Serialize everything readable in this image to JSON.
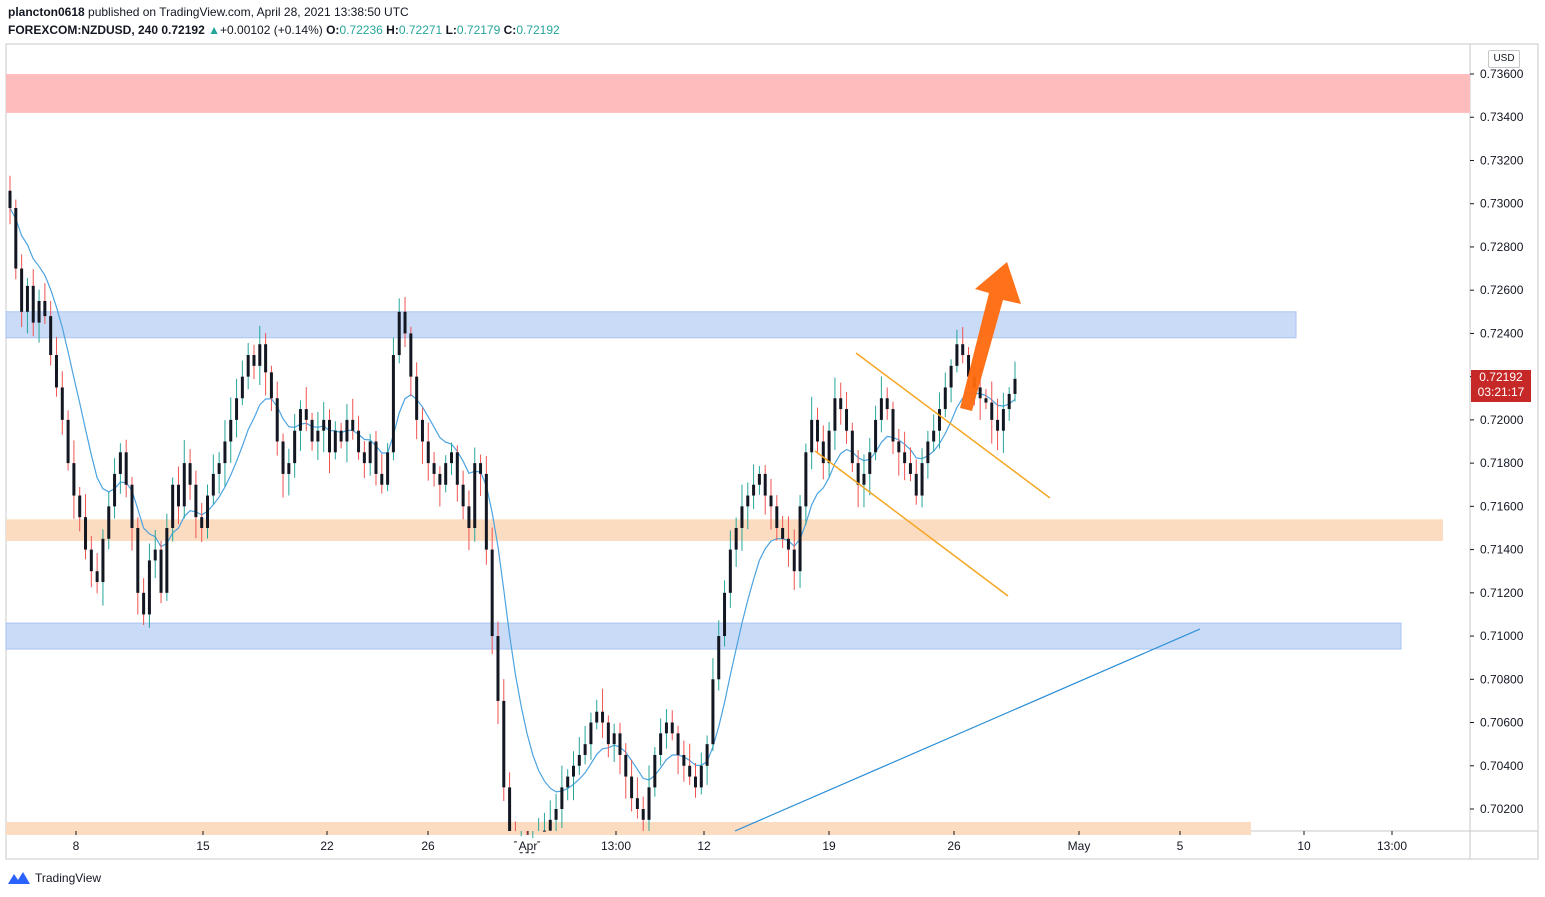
{
  "header": {
    "user": "plancton0618",
    "published": " published on TradingView.com, April 28, 2021 13:38:50 UTC",
    "symbol": "FOREXCOM:NZDUSD, 240",
    "last": "0.72192",
    "change_arrow": "▲",
    "change": "+0.00102 (+0.14%)",
    "o_label": "O:",
    "o_value": "0.72236",
    "h_label": "H:",
    "h_value": "0.72271",
    "l_label": "L:",
    "l_value": "0.72179",
    "c_label": "C:",
    "c_value": "0.72192"
  },
  "currency_label": "USD",
  "price_badge": {
    "price": "0.72192",
    "countdown": "03:21:17"
  },
  "footer": {
    "brand": "TradingView",
    "logo_icon": "tradingview-logo-icon"
  },
  "colors": {
    "up": "#26a69a",
    "down": "#ef5350",
    "candle_body": "#131722",
    "resistance_zone": "#ffbcbc",
    "blue_zone": "#cadbf7",
    "orange_zone": "#fcdcc0",
    "channel": "#f5a623",
    "ma": "#4ca3e0",
    "arrow": "#ff6a0d",
    "badge": "#c62828"
  },
  "chart_data": {
    "type": "candlestick",
    "symbol": "FOREXCOM:NZDUSD",
    "interval": "240",
    "currency": "USD",
    "y_ticks": [
      0.702,
      0.704,
      0.706,
      0.708,
      0.71,
      0.712,
      0.714,
      0.716,
      0.718,
      0.72,
      0.722,
      0.724,
      0.726,
      0.728,
      0.73,
      0.732,
      0.734,
      0.736
    ],
    "y_tick_labels": [
      "0.70200",
      "0.70400",
      "0.70600",
      "0.70800",
      "0.71000",
      "0.71200",
      "0.71400",
      "0.71600",
      "0.71800",
      "0.72000",
      "0.72200",
      "0.72400",
      "0.72600",
      "0.72800",
      "0.73000",
      "0.73200",
      "0.73400",
      "0.73600"
    ],
    "ylim": [
      0.7011,
      0.7375
    ],
    "x_labels": [
      "8",
      "15",
      "22",
      "26",
      "Apr",
      "13:00",
      "12",
      "19",
      "26",
      "May",
      "5",
      "10",
      "13:00"
    ],
    "last_price": 0.72192,
    "candles_close": [
      0.7298,
      0.727,
      0.725,
      0.7262,
      0.7245,
      0.7255,
      0.7248,
      0.723,
      0.7215,
      0.72,
      0.718,
      0.7165,
      0.7155,
      0.714,
      0.713,
      0.7125,
      0.7145,
      0.716,
      0.7175,
      0.7185,
      0.717,
      0.715,
      0.712,
      0.711,
      0.7135,
      0.714,
      0.712,
      0.715,
      0.717,
      0.716,
      0.718,
      0.717,
      0.7155,
      0.715,
      0.7165,
      0.7175,
      0.718,
      0.719,
      0.72,
      0.721,
      0.722,
      0.723,
      0.7225,
      0.7235,
      0.7222,
      0.721,
      0.719,
      0.7175,
      0.718,
      0.7195,
      0.7205,
      0.72,
      0.719,
      0.7195,
      0.72,
      0.7185,
      0.7195,
      0.719,
      0.72,
      0.7195,
      0.7185,
      0.718,
      0.719,
      0.7175,
      0.717,
      0.7185,
      0.723,
      0.725,
      0.724,
      0.722,
      0.72,
      0.719,
      0.718,
      0.7175,
      0.717,
      0.718,
      0.7185,
      0.717,
      0.716,
      0.715,
      0.718,
      0.7175,
      0.714,
      0.71,
      0.707,
      0.703,
      0.7005,
      0.7,
      0.7,
      0.6998,
      0.7,
      0.7005,
      0.701,
      0.7015,
      0.702,
      0.703,
      0.7035,
      0.704,
      0.7045,
      0.705,
      0.706,
      0.7065,
      0.706,
      0.705,
      0.7055,
      0.7045,
      0.7035,
      0.7025,
      0.702,
      0.7015,
      0.703,
      0.7045,
      0.7055,
      0.706,
      0.7055,
      0.7045,
      0.704,
      0.7035,
      0.703,
      0.704,
      0.705,
      0.708,
      0.71,
      0.712,
      0.714,
      0.715,
      0.716,
      0.7165,
      0.717,
      0.7175,
      0.7165,
      0.716,
      0.715,
      0.7145,
      0.714,
      0.713,
      0.716,
      0.7185,
      0.72,
      0.719,
      0.718,
      0.7195,
      0.721,
      0.7205,
      0.7195,
      0.718,
      0.717,
      0.7175,
      0.7185,
      0.72,
      0.721,
      0.7205,
      0.719,
      0.7185,
      0.718,
      0.7175,
      0.7165,
      0.718,
      0.719,
      0.7195,
      0.7205,
      0.7215,
      0.7225,
      0.7235,
      0.723,
      0.722,
      0.7215,
      0.721,
      0.7208,
      0.72,
      0.7195,
      0.7205,
      0.7212,
      0.7219
    ],
    "moving_average_label": "",
    "zones": [
      {
        "type": "resistance",
        "from": 0.7342,
        "to": 0.736
      },
      {
        "type": "blue",
        "from": 0.7238,
        "to": 0.725
      },
      {
        "type": "orange",
        "from": 0.7144,
        "to": 0.7154
      },
      {
        "type": "blue",
        "from": 0.7094,
        "to": 0.7106
      },
      {
        "type": "orange",
        "from": 0.7008,
        "to": 0.7014
      }
    ]
  }
}
